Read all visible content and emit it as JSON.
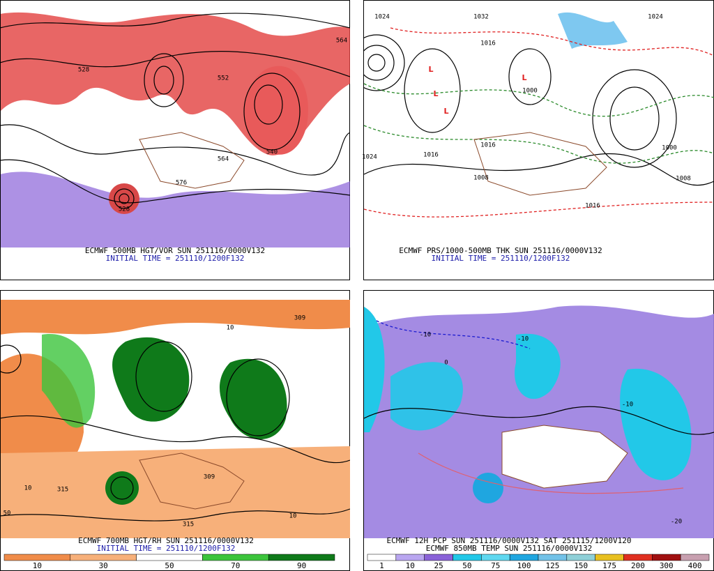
{
  "panels": [
    {
      "caption": "ECMWF 500MB HGT/VOR SUN 251116/0000V132",
      "initial_time": "INITIAL TIME = 251110/1200F132",
      "contour_labels": [
        "564",
        "528",
        "552",
        "540",
        "564",
        "576",
        "528"
      ]
    },
    {
      "caption": "ECMWF PRS/1000-500MB THK SUN 251116/0000V132",
      "initial_time": "INITIAL TIME = 251110/1200F132",
      "contour_labels": [
        "1024",
        "1032",
        "1016",
        "1024",
        "1000",
        "1016",
        "1008",
        "1016",
        "1016",
        "1008",
        "1000",
        "1024"
      ],
      "pressure_centers": [
        "L",
        "L",
        "L",
        "L"
      ]
    },
    {
      "caption": "ECMWF 700MB HGT/RH SUN 251116/0000V132",
      "initial_time": "INITIAL TIME = 251110/1200F132",
      "contour_labels": [
        "309",
        "10",
        "315",
        "309",
        "50",
        "10",
        "315",
        "10"
      ],
      "colorbar": {
        "ticks": [
          10,
          30,
          50,
          70,
          90
        ],
        "colors": [
          "#f08c4a",
          "#f7b07a",
          "#ffffff",
          "#3cc43c",
          "#0f7a1a"
        ]
      }
    },
    {
      "caption": "ECMWF 12H PCP SUN 251116/0000V132  SAT 251115/1200V120",
      "initial_time": "ECMWF 850MB TEMP SUN 251116/0000V132",
      "contour_labels": [
        "-10",
        "-10",
        "0",
        "-10",
        "-20"
      ],
      "colorbar": {
        "ticks": [
          1,
          10,
          25,
          50,
          75,
          100,
          125,
          150,
          175,
          200,
          300,
          400
        ],
        "colors": [
          "#ffffff",
          "#b9a6f0",
          "#8a62d8",
          "#22c8e8",
          "#5fd8f0",
          "#1fa6e0",
          "#72c2e8",
          "#8fd0d8",
          "#e8c020",
          "#e03020",
          "#a01010",
          "#c8a0b0"
        ]
      }
    }
  ]
}
